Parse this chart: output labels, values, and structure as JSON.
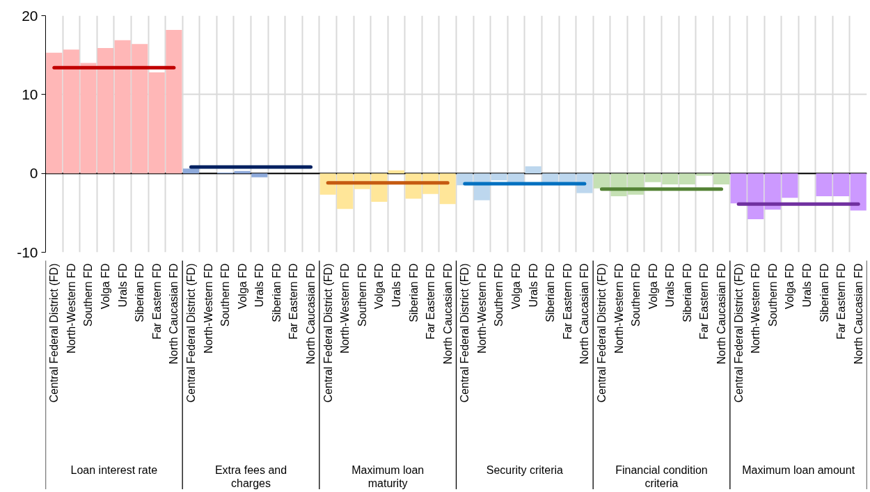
{
  "chart_data": {
    "type": "bar",
    "categories": [
      "Central Federal District (FD)",
      "North-Western FD",
      "Southern FD",
      "Volga FD",
      "Urals FD",
      "Siberian FD",
      "Far Eastern FD",
      "North Caucasian FD",
      "Central Federal District (FD)",
      "North-Western FD",
      "Southern FD",
      "Volga FD",
      "Urals FD",
      "Siberian FD",
      "Far Eastern FD",
      "North Caucasian FD",
      "Central Federal District (FD)",
      "North-Western FD",
      "Southern FD",
      "Volga FD",
      "Urals FD",
      "Siberian FD",
      "Far Eastern FD",
      "North Caucasian FD",
      "Central Federal District (FD)",
      "North-Western FD",
      "Southern FD",
      "Volga FD",
      "Urals FD",
      "Siberian FD",
      "Far Eastern FD",
      "North Caucasian FD",
      "Central Federal District (FD)",
      "North-Western FD",
      "Southern FD",
      "Volga FD",
      "Urals FD",
      "Siberian FD",
      "Far Eastern FD",
      "North Caucasian FD",
      "Central Federal District (FD)",
      "North-Western FD",
      "Southern FD",
      "Volga FD",
      "Urals FD",
      "Siberian FD",
      "Far Eastern FD",
      "North Caucasian FD"
    ],
    "series": [
      {
        "color": "#ffb7b7",
        "values": [
          15.3,
          15.7,
          14.0,
          15.9,
          16.9,
          16.4,
          12.8,
          18.2,
          null,
          null,
          null,
          null,
          null,
          null,
          null,
          null,
          null,
          null,
          null,
          null,
          null,
          null,
          null,
          null,
          null,
          null,
          null,
          null,
          null,
          null,
          null,
          null,
          null,
          null,
          null,
          null,
          null,
          null,
          null,
          null,
          null,
          null,
          null,
          null,
          null,
          null,
          null,
          null
        ]
      },
      {
        "color": "#8eaadb",
        "values": [
          null,
          null,
          null,
          null,
          null,
          null,
          null,
          null,
          0.6,
          0,
          0.1,
          0.3,
          -0.5,
          0,
          0,
          0,
          null,
          null,
          null,
          null,
          null,
          null,
          null,
          null,
          null,
          null,
          null,
          null,
          null,
          null,
          null,
          null,
          null,
          null,
          null,
          null,
          null,
          null,
          null,
          null,
          null,
          null,
          null,
          null,
          null,
          null,
          null,
          null
        ]
      },
      {
        "color": "#ffe699",
        "values": [
          null,
          null,
          null,
          null,
          null,
          null,
          null,
          null,
          null,
          null,
          null,
          null,
          null,
          null,
          null,
          null,
          -2.7,
          -4.5,
          -2.0,
          -3.6,
          0.4,
          -3.2,
          -2.6,
          -3.9,
          null,
          null,
          null,
          null,
          null,
          null,
          null,
          null,
          null,
          null,
          null,
          null,
          null,
          null,
          null,
          null,
          null,
          null,
          null,
          null,
          null,
          null,
          null,
          null
        ]
      },
      {
        "color": "#bdd7ee",
        "values": [
          null,
          null,
          null,
          null,
          null,
          null,
          null,
          null,
          null,
          null,
          null,
          null,
          null,
          null,
          null,
          null,
          null,
          null,
          null,
          null,
          null,
          null,
          null,
          null,
          -1.5,
          -3.4,
          -0.9,
          -1.2,
          0.9,
          -1.3,
          -1.3,
          -2.5,
          null,
          null,
          null,
          null,
          null,
          null,
          null,
          null,
          null,
          null,
          null,
          null,
          null,
          null,
          null,
          null
        ]
      },
      {
        "color": "#c5e0b4",
        "values": [
          null,
          null,
          null,
          null,
          null,
          null,
          null,
          null,
          null,
          null,
          null,
          null,
          null,
          null,
          null,
          null,
          null,
          null,
          null,
          null,
          null,
          null,
          null,
          null,
          null,
          null,
          null,
          null,
          null,
          null,
          null,
          null,
          -1.9,
          -2.9,
          -2.7,
          -1.1,
          -1.4,
          -1.4,
          -0.3,
          -1.4,
          null,
          null,
          null,
          null,
          null,
          null,
          null,
          null
        ]
      },
      {
        "color": "#cc99ff",
        "values": [
          null,
          null,
          null,
          null,
          null,
          null,
          null,
          null,
          null,
          null,
          null,
          null,
          null,
          null,
          null,
          null,
          null,
          null,
          null,
          null,
          null,
          null,
          null,
          null,
          null,
          null,
          null,
          null,
          null,
          null,
          null,
          null,
          null,
          null,
          null,
          null,
          null,
          null,
          null,
          null,
          -3.8,
          -5.8,
          -4.6,
          -3.1,
          0,
          -2.9,
          -2.9,
          -4.7
        ]
      },
      {
        "type": "line",
        "color": "#c00000",
        "values": [
          13.4,
          13.4,
          13.4,
          13.4,
          13.4,
          13.4,
          13.4,
          13.4,
          null,
          null,
          null,
          null,
          null,
          null,
          null,
          null,
          null,
          null,
          null,
          null,
          null,
          null,
          null,
          null,
          null,
          null,
          null,
          null,
          null,
          null,
          null,
          null,
          null,
          null,
          null,
          null,
          null,
          null,
          null,
          null,
          null,
          null,
          null,
          null,
          null,
          null,
          null,
          null
        ]
      },
      {
        "type": "line",
        "color": "#002060",
        "values": [
          null,
          null,
          null,
          null,
          null,
          null,
          null,
          null,
          0.8,
          0.8,
          0.8,
          0.8,
          0.8,
          0.8,
          0.8,
          0.8,
          null,
          null,
          null,
          null,
          null,
          null,
          null,
          null,
          null,
          null,
          null,
          null,
          null,
          null,
          null,
          null,
          null,
          null,
          null,
          null,
          null,
          null,
          null,
          null,
          null,
          null,
          null,
          null,
          null,
          null,
          null,
          null
        ]
      },
      {
        "type": "line",
        "color": "#c55a11",
        "values": [
          null,
          null,
          null,
          null,
          null,
          null,
          null,
          null,
          null,
          null,
          null,
          null,
          null,
          null,
          null,
          null,
          -1.2,
          -1.2,
          -1.2,
          -1.2,
          -1.2,
          -1.2,
          -1.2,
          -1.2,
          null,
          null,
          null,
          null,
          null,
          null,
          null,
          null,
          null,
          null,
          null,
          null,
          null,
          null,
          null,
          null,
          null,
          null,
          null,
          null,
          null,
          null,
          null,
          null
        ]
      },
      {
        "type": "line",
        "color": "#0070c0",
        "values": [
          null,
          null,
          null,
          null,
          null,
          null,
          null,
          null,
          null,
          null,
          null,
          null,
          null,
          null,
          null,
          null,
          null,
          null,
          null,
          null,
          null,
          null,
          null,
          null,
          -1.3,
          -1.3,
          -1.3,
          -1.3,
          -1.3,
          -1.3,
          -1.3,
          -1.3,
          null,
          null,
          null,
          null,
          null,
          null,
          null,
          null,
          null,
          null,
          null,
          null,
          null,
          null,
          null,
          null
        ]
      },
      {
        "type": "line",
        "color": "#548235",
        "values": [
          null,
          null,
          null,
          null,
          null,
          null,
          null,
          null,
          null,
          null,
          null,
          null,
          null,
          null,
          null,
          null,
          null,
          null,
          null,
          null,
          null,
          null,
          null,
          null,
          null,
          null,
          null,
          null,
          null,
          null,
          null,
          null,
          -2.0,
          -2.0,
          -2.0,
          -2.0,
          -2.0,
          -2.0,
          -2.0,
          -2.0,
          null,
          null,
          null,
          null,
          null,
          null,
          null,
          null
        ]
      },
      {
        "type": "line",
        "color": "#7030a0",
        "values": [
          null,
          null,
          null,
          null,
          null,
          null,
          null,
          null,
          null,
          null,
          null,
          null,
          null,
          null,
          null,
          null,
          null,
          null,
          null,
          null,
          null,
          null,
          null,
          null,
          null,
          null,
          null,
          null,
          null,
          null,
          null,
          null,
          null,
          null,
          null,
          null,
          null,
          null,
          null,
          null,
          -3.9,
          -3.9,
          -3.9,
          -3.9,
          -3.9,
          -3.9,
          -3.9,
          -3.9
        ]
      }
    ],
    "annotations": [
      "Loan interest rate",
      "Extra fees and charges",
      "Maximum loan maturity",
      "Security criteria",
      "Financial condition criteria",
      "Maximum loan amount"
    ],
    "ylim": [
      -10,
      20
    ],
    "yticks": [
      20,
      10,
      0,
      -10
    ],
    "grid": true,
    "ref_lines": [
      {
        "axis": "y",
        "value": 0,
        "color": "#000000"
      }
    ]
  }
}
